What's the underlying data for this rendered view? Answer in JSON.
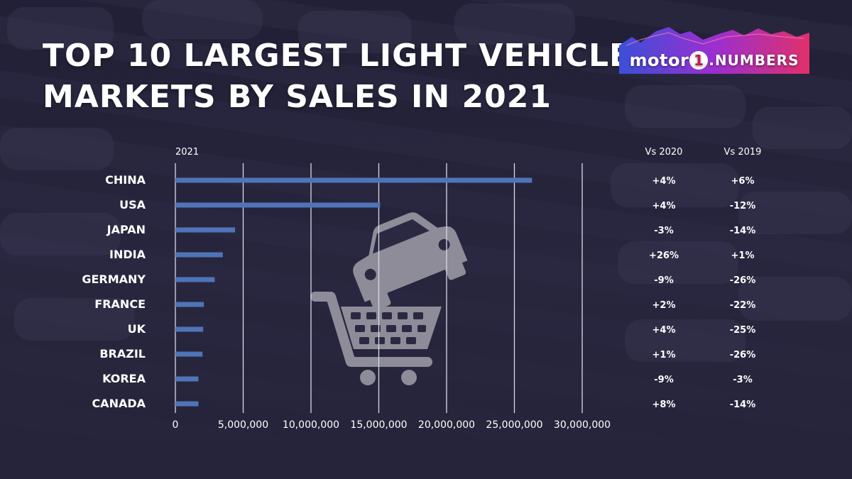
{
  "header": {
    "title_line1": "TOP 10 LARGEST LIGHT VEHICLE",
    "title_line2": "MARKETS BY SALES IN 2021"
  },
  "logo": {
    "brand_left": "motor",
    "brand_one": "1",
    "brand_right": ".NUMBERS"
  },
  "colors": {
    "bar": "#4f74b8",
    "gridline": "#d9d9e6",
    "text": "#ffffff",
    "icon": "#8d8c98"
  },
  "chart_data": {
    "type": "bar",
    "orientation": "horizontal",
    "title": "TOP 10 LARGEST LIGHT VEHICLE MARKETS BY SALES IN 2021",
    "series_label": "2021",
    "categories": [
      "CHINA",
      "USA",
      "JAPAN",
      "INDIA",
      "GERMANY",
      "FRANCE",
      "UK",
      "BRAZIL",
      "KOREA",
      "CANADA"
    ],
    "values": [
      26300000,
      15100000,
      4400000,
      3500000,
      2900000,
      2100000,
      2050000,
      2000000,
      1700000,
      1700000
    ],
    "xlim": [
      0,
      30000000
    ],
    "ticks": [
      0,
      5000000,
      10000000,
      15000000,
      20000000,
      25000000,
      30000000
    ],
    "tick_labels": [
      "0",
      "5,000,000",
      "10,000,000",
      "15,000,000",
      "20,000,000",
      "25,000,000",
      "30,000,000"
    ],
    "grid": true,
    "comparison_columns": [
      {
        "header": "Vs 2020",
        "values": [
          "+4%",
          "+4%",
          "-3%",
          "+26%",
          "-9%",
          "+2%",
          "+4%",
          "+1%",
          "-9%",
          "+8%"
        ]
      },
      {
        "header": "Vs 2019",
        "values": [
          "+6%",
          "-12%",
          "-14%",
          "+1%",
          "-26%",
          "-22%",
          "-25%",
          "-26%",
          "-3%",
          "-14%"
        ]
      }
    ]
  }
}
